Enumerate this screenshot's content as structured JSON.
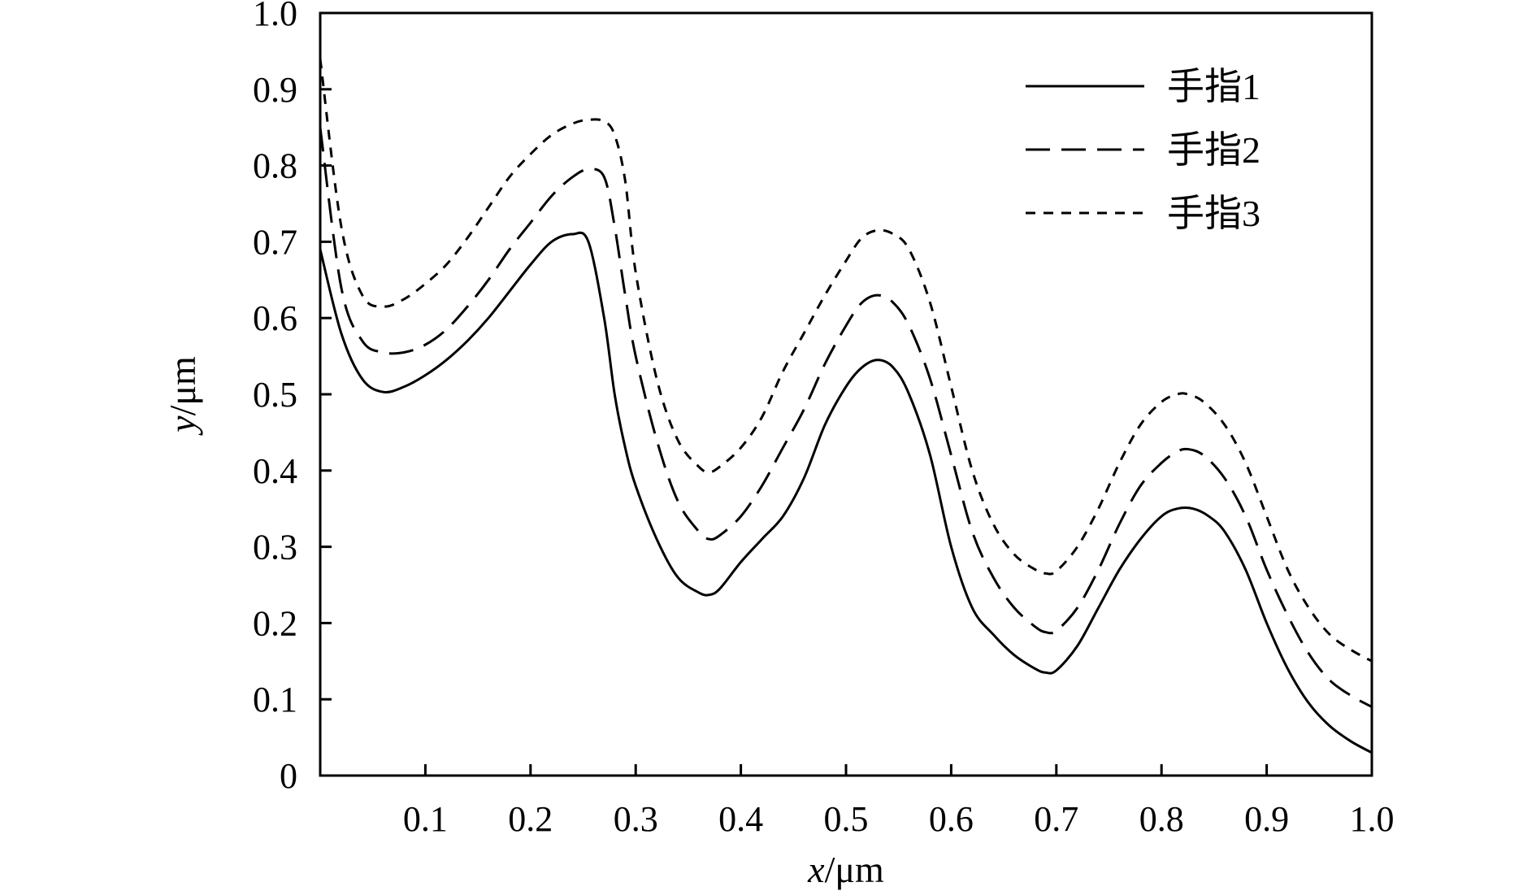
{
  "chart_data": {
    "type": "line",
    "title": "",
    "xlabel_var": "x",
    "xlabel_unit": "/μm",
    "ylabel_var": "y",
    "ylabel_unit": "/μm",
    "xlim": [
      0,
      1.0
    ],
    "ylim": [
      0,
      1.0
    ],
    "x_ticks": [
      0.1,
      0.2,
      0.3,
      0.4,
      0.5,
      0.6,
      0.7,
      0.8,
      0.9,
      1.0
    ],
    "x_tick_labels": [
      "0.1",
      "0.2",
      "0.3",
      "0.4",
      "0.5",
      "0.6",
      "0.7",
      "0.8",
      "0.9",
      "1.0"
    ],
    "y_ticks": [
      0,
      0.1,
      0.2,
      0.3,
      0.4,
      0.5,
      0.6,
      0.7,
      0.8,
      0.9,
      1.0
    ],
    "y_tick_labels": [
      "0",
      "0.1",
      "0.2",
      "0.3",
      "0.4",
      "0.5",
      "0.6",
      "0.7",
      "0.8",
      "0.9",
      "1.0"
    ],
    "grid": false,
    "legend_position": "top-right",
    "series": [
      {
        "name": "手指1",
        "style": "solid",
        "x": [
          0.0,
          0.02,
          0.04,
          0.06,
          0.08,
          0.1,
          0.12,
          0.14,
          0.16,
          0.18,
          0.2,
          0.22,
          0.24,
          0.255,
          0.27,
          0.28,
          0.29,
          0.3,
          0.32,
          0.34,
          0.36,
          0.37,
          0.38,
          0.4,
          0.42,
          0.44,
          0.46,
          0.48,
          0.5,
          0.515,
          0.53,
          0.545,
          0.56,
          0.58,
          0.6,
          0.62,
          0.64,
          0.66,
          0.68,
          0.69,
          0.7,
          0.72,
          0.74,
          0.76,
          0.78,
          0.8,
          0.815,
          0.83,
          0.845,
          0.86,
          0.88,
          0.9,
          0.92,
          0.94,
          0.96,
          0.98,
          1.0
        ],
        "y": [
          0.69,
          0.58,
          0.52,
          0.503,
          0.51,
          0.525,
          0.545,
          0.57,
          0.6,
          0.635,
          0.67,
          0.7,
          0.71,
          0.7,
          0.6,
          0.5,
          0.43,
          0.38,
          0.31,
          0.26,
          0.24,
          0.237,
          0.245,
          0.28,
          0.31,
          0.34,
          0.39,
          0.46,
          0.51,
          0.535,
          0.545,
          0.535,
          0.5,
          0.42,
          0.3,
          0.22,
          0.185,
          0.158,
          0.14,
          0.135,
          0.138,
          0.17,
          0.22,
          0.27,
          0.31,
          0.34,
          0.35,
          0.35,
          0.34,
          0.32,
          0.27,
          0.2,
          0.14,
          0.095,
          0.065,
          0.045,
          0.03
        ]
      },
      {
        "name": "手指2",
        "style": "dashed",
        "x": [
          0.0,
          0.02,
          0.04,
          0.06,
          0.08,
          0.1,
          0.12,
          0.14,
          0.16,
          0.18,
          0.2,
          0.22,
          0.24,
          0.255,
          0.27,
          0.28,
          0.29,
          0.3,
          0.32,
          0.34,
          0.36,
          0.37,
          0.38,
          0.4,
          0.42,
          0.44,
          0.46,
          0.48,
          0.5,
          0.515,
          0.53,
          0.545,
          0.56,
          0.58,
          0.6,
          0.62,
          0.64,
          0.66,
          0.68,
          0.69,
          0.7,
          0.72,
          0.74,
          0.76,
          0.78,
          0.8,
          0.815,
          0.825,
          0.84,
          0.86,
          0.88,
          0.9,
          0.92,
          0.94,
          0.96,
          0.98,
          1.0
        ],
        "y": [
          0.85,
          0.64,
          0.57,
          0.555,
          0.555,
          0.565,
          0.585,
          0.615,
          0.65,
          0.69,
          0.725,
          0.76,
          0.785,
          0.795,
          0.785,
          0.72,
          0.63,
          0.55,
          0.44,
          0.36,
          0.32,
          0.31,
          0.315,
          0.34,
          0.38,
          0.43,
          0.48,
          0.54,
          0.59,
          0.62,
          0.63,
          0.62,
          0.59,
          0.52,
          0.42,
          0.32,
          0.26,
          0.22,
          0.195,
          0.188,
          0.19,
          0.22,
          0.27,
          0.33,
          0.38,
          0.41,
          0.425,
          0.428,
          0.42,
          0.39,
          0.34,
          0.27,
          0.21,
          0.16,
          0.125,
          0.105,
          0.09
        ]
      },
      {
        "name": "手指3",
        "style": "dotted",
        "x": [
          0.0,
          0.02,
          0.04,
          0.06,
          0.08,
          0.1,
          0.12,
          0.14,
          0.16,
          0.18,
          0.2,
          0.22,
          0.24,
          0.255,
          0.27,
          0.28,
          0.29,
          0.3,
          0.32,
          0.34,
          0.36,
          0.37,
          0.38,
          0.4,
          0.42,
          0.44,
          0.46,
          0.48,
          0.5,
          0.515,
          0.53,
          0.545,
          0.56,
          0.58,
          0.6,
          0.62,
          0.64,
          0.66,
          0.68,
          0.69,
          0.7,
          0.72,
          0.74,
          0.76,
          0.78,
          0.8,
          0.815,
          0.825,
          0.84,
          0.86,
          0.88,
          0.9,
          0.92,
          0.94,
          0.96,
          0.98,
          1.0
        ],
        "y": [
          0.94,
          0.72,
          0.63,
          0.615,
          0.625,
          0.645,
          0.67,
          0.705,
          0.745,
          0.785,
          0.815,
          0.84,
          0.855,
          0.86,
          0.858,
          0.84,
          0.78,
          0.66,
          0.52,
          0.44,
          0.405,
          0.398,
          0.405,
          0.43,
          0.47,
          0.53,
          0.58,
          0.63,
          0.675,
          0.705,
          0.715,
          0.71,
          0.69,
          0.62,
          0.51,
          0.4,
          0.33,
          0.29,
          0.27,
          0.265,
          0.268,
          0.3,
          0.35,
          0.41,
          0.46,
          0.49,
          0.5,
          0.5,
          0.49,
          0.46,
          0.41,
          0.34,
          0.27,
          0.22,
          0.185,
          0.165,
          0.15
        ]
      }
    ]
  }
}
